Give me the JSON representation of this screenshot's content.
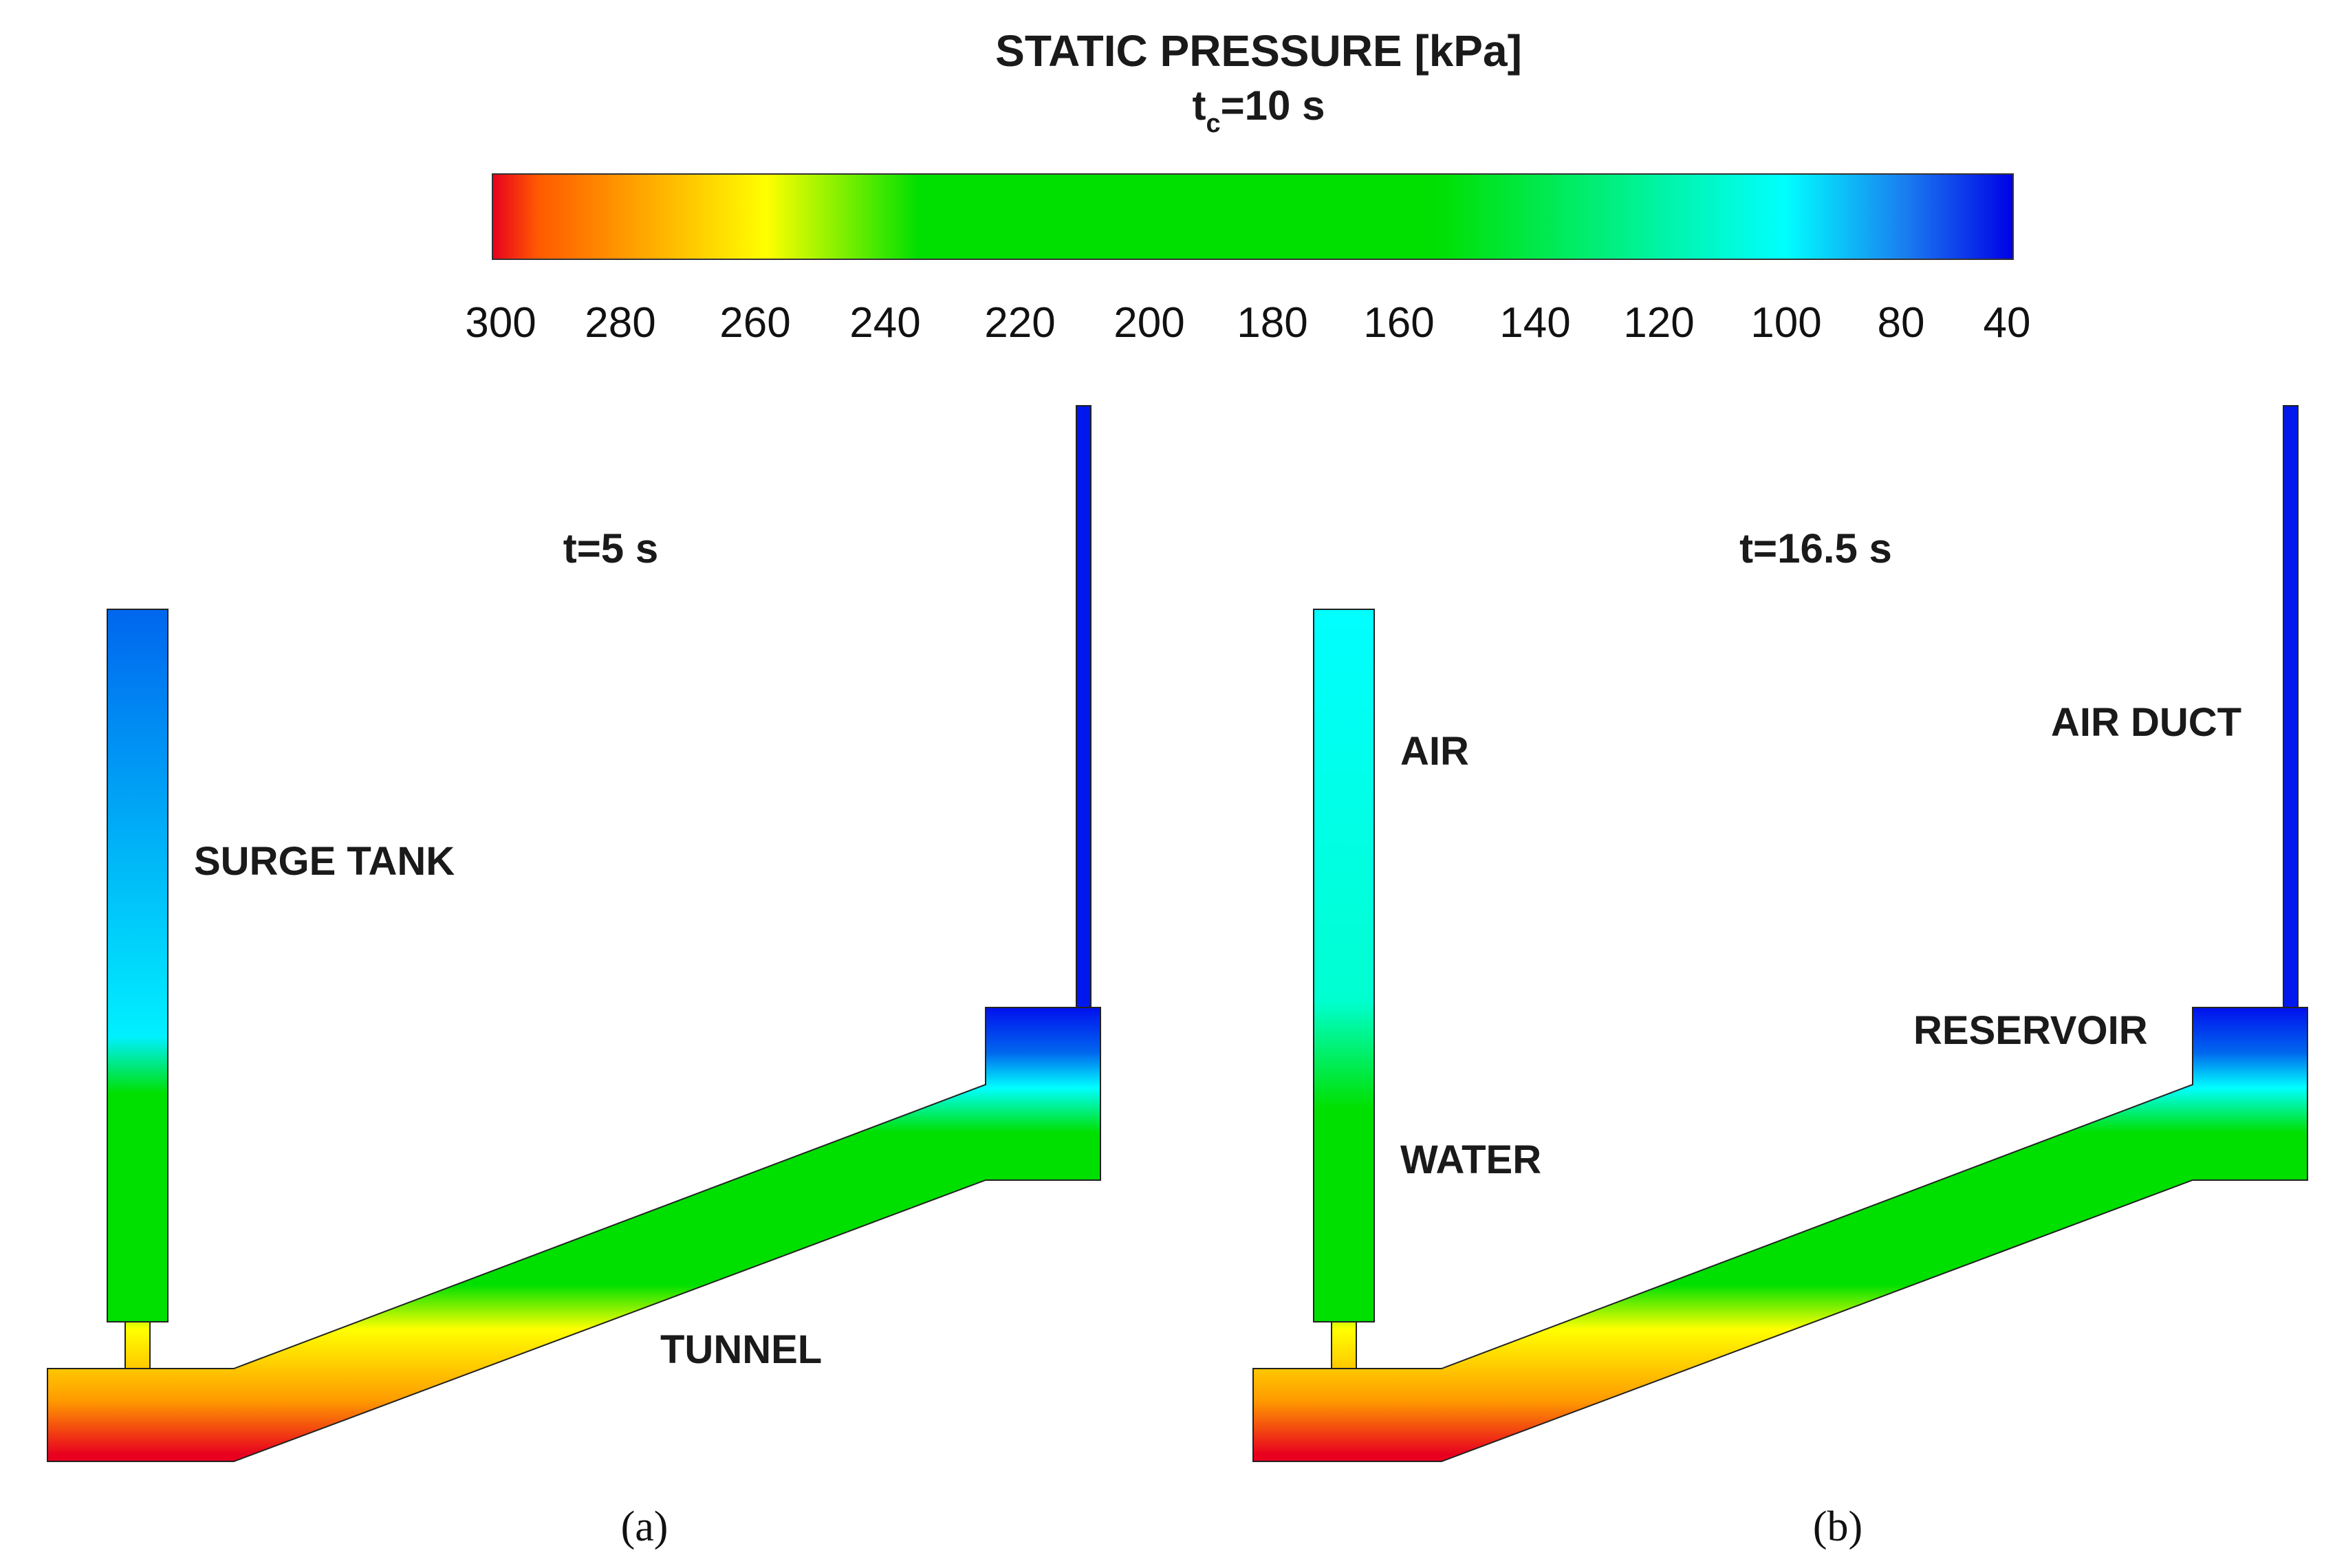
{
  "colorbar": {
    "title": "STATIC PRESSURE [kPa]",
    "subtitle_t": "t",
    "subtitle_sub": "c",
    "subtitle_rest": "=10 s",
    "ticks": [
      "300",
      "280",
      "260",
      "240",
      "220",
      "200",
      "180",
      "160",
      "140",
      "120",
      "100",
      "80",
      "40"
    ],
    "colors": {
      "red": "#e8001e",
      "orange": "#ffaa00",
      "yellow": "#ffff00",
      "green": "#00e000",
      "cyan": "#00ffff",
      "blue": "#0000e6"
    }
  },
  "panel_a": {
    "time": "t=5 s",
    "surge_tank_label": "SURGE TANK",
    "tunnel_label": "TUNNEL",
    "caption": "(a)"
  },
  "panel_b": {
    "time": "t=16.5 s",
    "air_label": "AIR",
    "water_label": "WATER",
    "air_duct_label": "AIR DUCT",
    "reservoir_label": "RESERVOIR",
    "caption": "(b)"
  }
}
